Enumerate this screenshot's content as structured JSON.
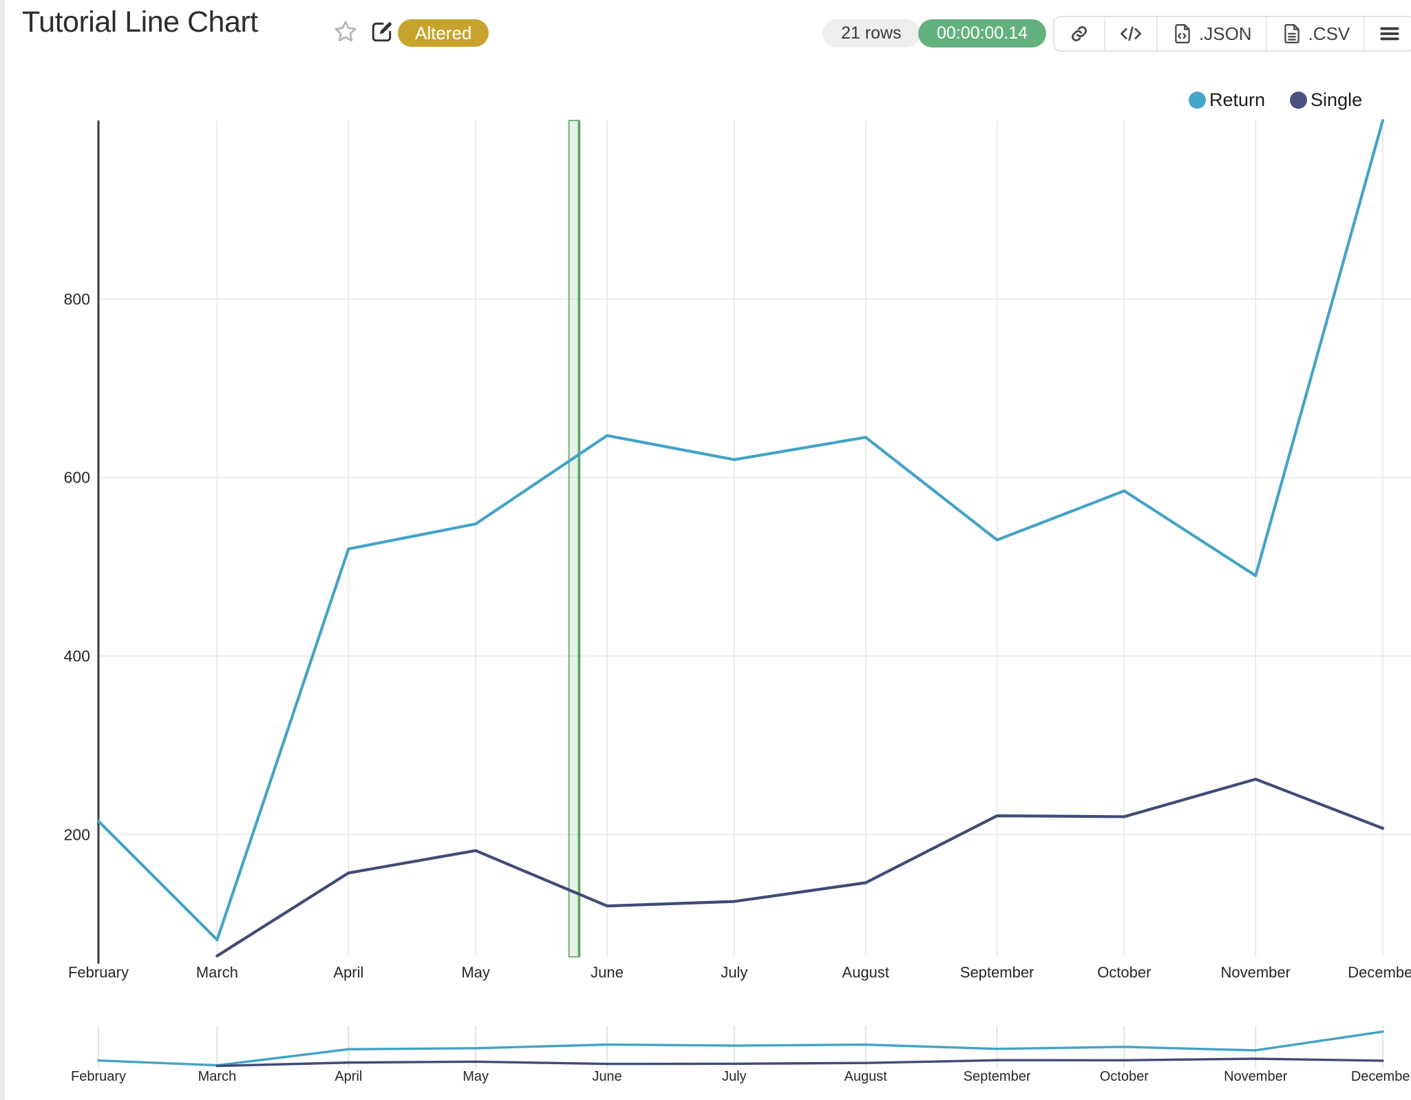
{
  "header": {
    "title": "Tutorial Line Chart",
    "status_badge": "Altered",
    "rows_badge": "21 rows",
    "timer_badge": "00:00:00.14"
  },
  "toolbar": {
    "buttons": [
      {
        "icon": "link-icon",
        "label": ""
      },
      {
        "icon": "embed-code-icon",
        "label": ""
      },
      {
        "icon": "file-code-icon",
        "label": ".JSON"
      },
      {
        "icon": "file-text-icon",
        "label": ".CSV"
      },
      {
        "icon": "menu-icon",
        "label": ""
      }
    ],
    "json_label": ".JSON",
    "csv_label": ".CSV"
  },
  "legend": [
    {
      "label": "Return",
      "color": "#45a5c9"
    },
    {
      "label": "Single",
      "color": "#4a5282"
    }
  ],
  "colors": {
    "altered_badge": "#c8a42f",
    "timer_badge": "#63b27e",
    "return_series": "#44a3c6",
    "single_series": "#404b76",
    "highlight_band": "#57a65b",
    "grid": "#ececec",
    "axis": "#3a3a3a"
  },
  "chart_data": {
    "type": "line",
    "title": "Tutorial Line Chart",
    "categories": [
      "February",
      "March",
      "April",
      "May",
      "June",
      "July",
      "August",
      "September",
      "October",
      "November",
      "December"
    ],
    "x_time_days": [
      0,
      28,
      59,
      89,
      120,
      150,
      181,
      212,
      242,
      273,
      303
    ],
    "series": [
      {
        "name": "Return",
        "color": "#44a3c6",
        "values": [
          215,
          82,
          520,
          548,
          647,
          620,
          645,
          530,
          585,
          490,
          1000
        ]
      },
      {
        "name": "Single",
        "color": "#404b76",
        "values": [
          null,
          64,
          157,
          182,
          120,
          125,
          146,
          221,
          220,
          262,
          207
        ]
      }
    ],
    "ylim": [
      63,
      1000
    ],
    "yticks": [
      200,
      400,
      600,
      800
    ],
    "grid": true,
    "legend_position": "top-right",
    "highlight_band": {
      "from_day": 111.0,
      "to_day": 113.4,
      "fill": "rgba(87,166,91,0.14)",
      "border_color": "#57a65b"
    },
    "context_strip": {
      "show": true,
      "ylim": [
        0,
        1050
      ]
    }
  }
}
